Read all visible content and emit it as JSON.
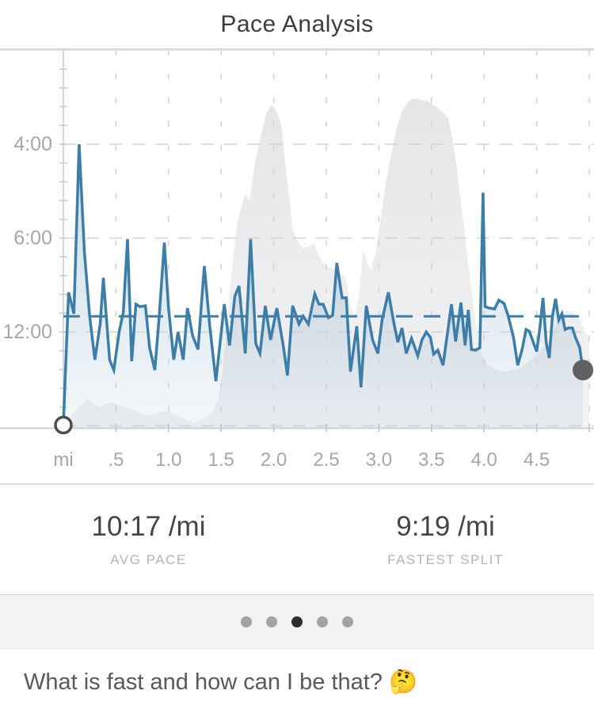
{
  "title": "Pace Analysis",
  "stats": [
    {
      "value": "10:17 /mi",
      "label": "AVG PACE"
    },
    {
      "value": "9:19 /mi",
      "label": "FASTEST SPLIT"
    }
  ],
  "pagination": {
    "dot_count": 5,
    "active_index": 2
  },
  "caption": "What is fast and how can I be that? 🤔",
  "chart_data": {
    "type": "line",
    "title": "Pace Analysis",
    "xlabel_unit": "mi",
    "x_range_mi": [
      0,
      5.0
    ],
    "y_axis": {
      "top_mph": 20,
      "bottom_mph": 0,
      "note": "linear in speed, labeled as pace"
    },
    "x_ticks": [
      {
        "label": "mi",
        "mi": 0
      },
      {
        "label": ".5",
        "mi": 0.5
      },
      {
        "label": "1.0",
        "mi": 1.0
      },
      {
        "label": "1.5",
        "mi": 1.5
      },
      {
        "label": "2.0",
        "mi": 2.0
      },
      {
        "label": "2.5",
        "mi": 2.5
      },
      {
        "label": "3.0",
        "mi": 3.0
      },
      {
        "label": "3.5",
        "mi": 3.5
      },
      {
        "label": "4.0",
        "mi": 4.0
      },
      {
        "label": "4.5",
        "mi": 4.5
      },
      {
        "label": "",
        "mi": 5.0
      }
    ],
    "y_ticks": [
      {
        "label": "4:00",
        "mph": 15
      },
      {
        "label": "6:00",
        "mph": 10
      },
      {
        "label": "12:00",
        "mph": 5
      },
      {
        "label": "",
        "mph": 0
      }
    ],
    "avg_pace_s": 617,
    "start_point_mi": 0,
    "end_point": {
      "mi": 4.94,
      "pace_s": 1212
    },
    "pace_series_mi_paceSeconds": [
      [
        0.05,
        506
      ],
      [
        0.1,
        603
      ],
      [
        0.15,
        240
      ],
      [
        0.2,
        390
      ],
      [
        0.25,
        616
      ],
      [
        0.3,
        1023
      ],
      [
        0.35,
        664
      ],
      [
        0.38,
        457
      ],
      [
        0.44,
        1023
      ],
      [
        0.48,
        1212
      ],
      [
        0.53,
        720
      ],
      [
        0.57,
        595
      ],
      [
        0.61,
        362
      ],
      [
        0.65,
        1047
      ],
      [
        0.69,
        556
      ],
      [
        0.73,
        567
      ],
      [
        0.78,
        563
      ],
      [
        0.82,
        865
      ],
      [
        0.87,
        1212
      ],
      [
        0.91,
        630
      ],
      [
        0.96,
        369
      ],
      [
        1.0,
        574
      ],
      [
        1.05,
        1023
      ],
      [
        1.09,
        720
      ],
      [
        1.14,
        1023
      ],
      [
        1.18,
        574
      ],
      [
        1.23,
        752
      ],
      [
        1.28,
        885
      ],
      [
        1.34,
        423
      ],
      [
        1.39,
        664
      ],
      [
        1.45,
        1513
      ],
      [
        1.53,
        556
      ],
      [
        1.58,
        841
      ],
      [
        1.63,
        522
      ],
      [
        1.67,
        483
      ],
      [
        1.73,
        933
      ],
      [
        1.78,
        362
      ],
      [
        1.83,
        824
      ],
      [
        1.87,
        933
      ],
      [
        1.92,
        563
      ],
      [
        1.97,
        786
      ],
      [
        2.03,
        574
      ],
      [
        2.09,
        841
      ],
      [
        2.13,
        1343
      ],
      [
        2.18,
        563
      ],
      [
        2.24,
        664
      ],
      [
        2.28,
        616
      ],
      [
        2.33,
        664
      ],
      [
        2.39,
        512
      ],
      [
        2.43,
        556
      ],
      [
        2.47,
        556
      ],
      [
        2.52,
        625
      ],
      [
        2.56,
        612
      ],
      [
        2.6,
        415
      ],
      [
        2.65,
        528
      ],
      [
        2.69,
        528
      ],
      [
        2.73,
        1246
      ],
      [
        2.79,
        679
      ],
      [
        2.83,
        1756
      ],
      [
        2.88,
        563
      ],
      [
        2.94,
        786
      ],
      [
        2.99,
        933
      ],
      [
        3.03,
        639
      ],
      [
        3.09,
        506
      ],
      [
        3.14,
        649
      ],
      [
        3.18,
        809
      ],
      [
        3.22,
        691
      ],
      [
        3.26,
        933
      ],
      [
        3.31,
        773
      ],
      [
        3.37,
        965
      ],
      [
        3.41,
        786
      ],
      [
        3.45,
        720
      ],
      [
        3.49,
        766
      ],
      [
        3.52,
        943
      ],
      [
        3.56,
        893
      ],
      [
        3.61,
        1115
      ],
      [
        3.69,
        556
      ],
      [
        3.73,
        802
      ],
      [
        3.78,
        548
      ],
      [
        3.82,
        841
      ],
      [
        3.85,
        583
      ],
      [
        3.88,
        885
      ],
      [
        3.92,
        893
      ],
      [
        3.96,
        865
      ],
      [
        3.99,
        290
      ],
      [
        4.01,
        567
      ],
      [
        4.05,
        574
      ],
      [
        4.1,
        578
      ],
      [
        4.14,
        538
      ],
      [
        4.19,
        552
      ],
      [
        4.23,
        616
      ],
      [
        4.28,
        766
      ],
      [
        4.32,
        1115
      ],
      [
        4.36,
        893
      ],
      [
        4.4,
        702
      ],
      [
        4.43,
        714
      ],
      [
        4.46,
        786
      ],
      [
        4.5,
        911
      ],
      [
        4.53,
        691
      ],
      [
        4.56,
        528
      ],
      [
        4.59,
        809
      ],
      [
        4.62,
        997
      ],
      [
        4.65,
        616
      ],
      [
        4.68,
        532
      ],
      [
        4.71,
        639
      ],
      [
        4.74,
        603
      ],
      [
        4.77,
        702
      ],
      [
        4.8,
        691
      ],
      [
        4.84,
        691
      ],
      [
        4.87,
        766
      ],
      [
        4.91,
        865
      ],
      [
        4.94,
        1212
      ]
    ],
    "elevation_profile_mi_relHeight": [
      [
        0,
        0.01
      ],
      [
        0.11,
        0.05
      ],
      [
        0.23,
        0.088
      ],
      [
        0.34,
        0.062
      ],
      [
        0.45,
        0.078
      ],
      [
        0.6,
        0.062
      ],
      [
        0.79,
        0.038
      ],
      [
        0.98,
        0.05
      ],
      [
        1.13,
        0.03
      ],
      [
        1.25,
        0.015
      ],
      [
        1.36,
        0.03
      ],
      [
        1.42,
        0.05
      ],
      [
        1.47,
        0.09
      ],
      [
        1.51,
        0.16
      ],
      [
        1.55,
        0.28
      ],
      [
        1.59,
        0.44
      ],
      [
        1.63,
        0.56
      ],
      [
        1.66,
        0.63
      ],
      [
        1.7,
        0.68
      ],
      [
        1.73,
        0.71
      ],
      [
        1.77,
        0.69
      ],
      [
        1.82,
        0.8
      ],
      [
        1.88,
        0.89
      ],
      [
        1.93,
        0.955
      ],
      [
        1.98,
        0.98
      ],
      [
        2.03,
        0.96
      ],
      [
        2.07,
        0.92
      ],
      [
        2.11,
        0.8
      ],
      [
        2.14,
        0.72
      ],
      [
        2.18,
        0.6
      ],
      [
        2.23,
        0.565
      ],
      [
        2.28,
        0.545
      ],
      [
        2.34,
        0.55
      ],
      [
        2.38,
        0.56
      ],
      [
        2.43,
        0.52
      ],
      [
        2.5,
        0.49
      ],
      [
        2.58,
        0.48
      ],
      [
        2.64,
        0.47
      ],
      [
        2.69,
        0.45
      ],
      [
        2.73,
        0.37
      ],
      [
        2.77,
        0.335
      ],
      [
        2.81,
        0.4
      ],
      [
        2.85,
        0.54
      ],
      [
        2.89,
        0.5
      ],
      [
        2.92,
        0.48
      ],
      [
        2.97,
        0.53
      ],
      [
        3.01,
        0.62
      ],
      [
        3.06,
        0.73
      ],
      [
        3.11,
        0.82
      ],
      [
        3.17,
        0.91
      ],
      [
        3.22,
        0.96
      ],
      [
        3.28,
        0.99
      ],
      [
        3.33,
        1.0
      ],
      [
        3.4,
        0.995
      ],
      [
        3.47,
        0.99
      ],
      [
        3.54,
        0.975
      ],
      [
        3.6,
        0.96
      ],
      [
        3.66,
        0.94
      ],
      [
        3.7,
        0.875
      ],
      [
        3.74,
        0.79
      ],
      [
        3.78,
        0.685
      ],
      [
        3.82,
        0.575
      ],
      [
        3.86,
        0.47
      ],
      [
        3.9,
        0.365
      ],
      [
        3.94,
        0.28
      ],
      [
        3.98,
        0.22
      ],
      [
        4.04,
        0.19
      ],
      [
        4.12,
        0.175
      ],
      [
        4.22,
        0.17
      ],
      [
        4.34,
        0.18
      ],
      [
        4.46,
        0.21
      ],
      [
        4.57,
        0.245
      ],
      [
        4.65,
        0.29
      ],
      [
        4.72,
        0.335
      ],
      [
        4.78,
        0.356
      ],
      [
        4.84,
        0.352
      ],
      [
        4.9,
        0.33
      ],
      [
        5.0,
        0.27
      ]
    ],
    "colors": {
      "line": "#3d7ea8",
      "avg_line": "#3d7ea8",
      "elevation_top": "#e3e4e6",
      "elevation_bottom": "#f2f3f4",
      "grid": "#d2d2d4",
      "axis": "#c9c9cb",
      "tick_label": "#a7a7a9",
      "end_dot": "#606060",
      "start_ring": "#4d4d4d"
    }
  }
}
